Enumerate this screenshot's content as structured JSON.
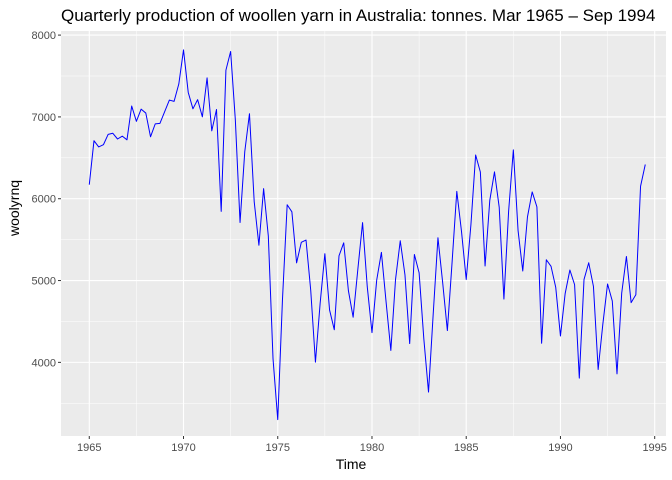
{
  "chart_data": {
    "type": "line",
    "title": "Quarterly production of woollen yarn in Australia: tonnes. Mar 1965 – Sep 1994",
    "xlabel": "Time",
    "ylabel": "woolyrnq",
    "xlim": [
      1963.5,
      1995.6
    ],
    "ylim": [
      3100,
      8050
    ],
    "x_ticks": [
      1965,
      1970,
      1975,
      1980,
      1985,
      1990,
      1995
    ],
    "y_ticks": [
      4000,
      5000,
      6000,
      7000,
      8000
    ],
    "grid": true,
    "line_color": "#0000ff",
    "panel_background": "#ebebeb",
    "series": [
      {
        "x_start": 1965.0,
        "x_step": 0.25,
        "values": [
          6172,
          6709,
          6633,
          6660,
          6786,
          6800,
          6730,
          6765,
          6720,
          7133,
          6946,
          7095,
          7047,
          6757,
          6915,
          6921,
          7064,
          7206,
          7190,
          7402,
          7819,
          7300,
          7099,
          7211,
          7001,
          7477,
          6830,
          7090,
          5845,
          7571,
          7800,
          6964,
          5710,
          6575,
          7039,
          5966,
          5432,
          6123,
          5544,
          4043,
          3300,
          4765,
          5926,
          5840,
          5216,
          5467,
          5495,
          4880,
          4003,
          4723,
          5328,
          4640,
          4399,
          5302,
          5461,
          4875,
          4552,
          5138,
          5708,
          4923,
          4364,
          5004,
          5345,
          4734,
          4146,
          5014,
          5486,
          5070,
          4230,
          5319,
          5096,
          4289,
          3637,
          4599,
          5523,
          4976,
          4389,
          5223,
          6090,
          5599,
          5013,
          5685,
          6535,
          6327,
          5178,
          5980,
          6328,
          5897,
          4774,
          5847,
          6597,
          5613,
          5117,
          5778,
          6083,
          5900,
          4234,
          5254,
          5174,
          4916,
          4323,
          4842,
          5129,
          4950,
          3807,
          5013,
          5217,
          4928,
          3913,
          4470,
          4958,
          4750,
          3859,
          4847,
          5294,
          4730,
          4827,
          6153,
          6418
        ]
      }
    ]
  }
}
